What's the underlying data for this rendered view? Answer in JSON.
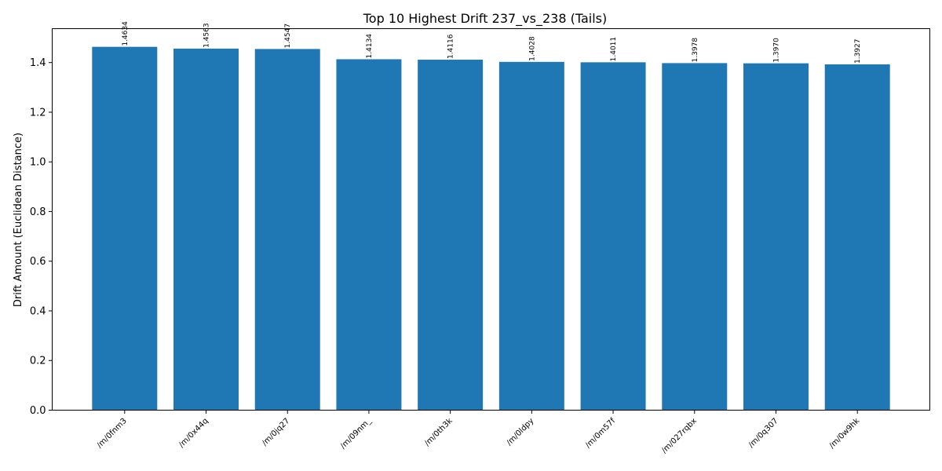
{
  "chart_data": {
    "type": "bar",
    "title": "Top 10 Highest Drift 237_vs_238 (Tails)",
    "xlabel": "",
    "ylabel": "Drift Amount (Euclidean Distance)",
    "categories": [
      "/m/0fnm3",
      "/m/0x44q",
      "/m/0jq27",
      "/m/09nm_",
      "/m/0th3k",
      "/m/0ldpy",
      "/m/0m57f",
      "/m/027rqbx",
      "/m/0q307",
      "/m/0w9hk"
    ],
    "values": [
      1.4634,
      1.4563,
      1.4547,
      1.4134,
      1.4116,
      1.4028,
      1.4011,
      1.3978,
      1.397,
      1.3927
    ],
    "value_labels": [
      "1.4634",
      "1.4563",
      "1.4547",
      "1.4134",
      "1.4116",
      "1.4028",
      "1.4011",
      "1.3978",
      "1.3970",
      "1.3927"
    ],
    "ylim": [
      0,
      1.5366
    ],
    "yticks": [
      0.0,
      0.2,
      0.4,
      0.6,
      0.8,
      1.0,
      1.2,
      1.4
    ],
    "ytick_labels": [
      "0.0",
      "0.2",
      "0.4",
      "0.6",
      "0.8",
      "1.0",
      "1.2",
      "1.4"
    ],
    "bar_color": "#1f77b4",
    "grid": false,
    "legend": false
  }
}
